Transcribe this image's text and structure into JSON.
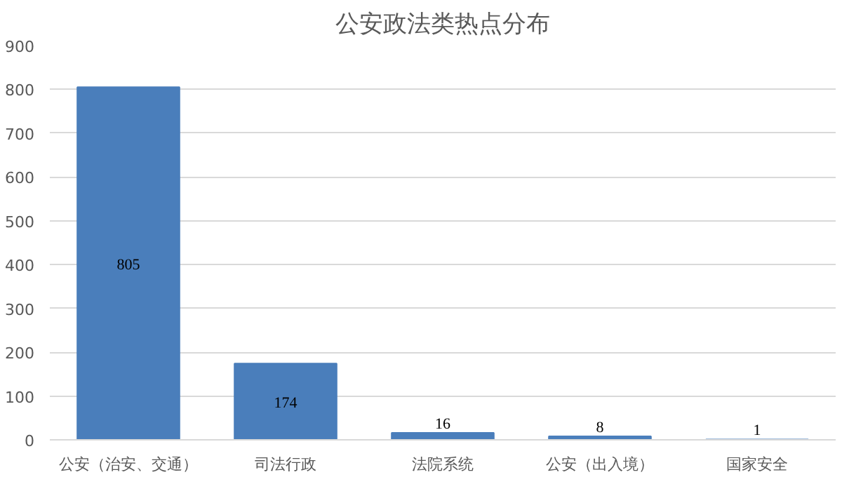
{
  "chart_data": {
    "type": "bar",
    "title": "公安政法类热点分布",
    "categories": [
      "公安（治安、交通）",
      "司法行政",
      "法院系统",
      "公安（出入境）",
      "国家安全"
    ],
    "values": [
      805,
      174,
      16,
      8,
      1
    ],
    "color": "#4a7ebb",
    "ylim": [
      0,
      900
    ],
    "yticks": [
      0,
      100,
      200,
      300,
      400,
      500,
      600,
      700,
      800,
      900
    ],
    "grid": "y",
    "data_labels": true
  }
}
